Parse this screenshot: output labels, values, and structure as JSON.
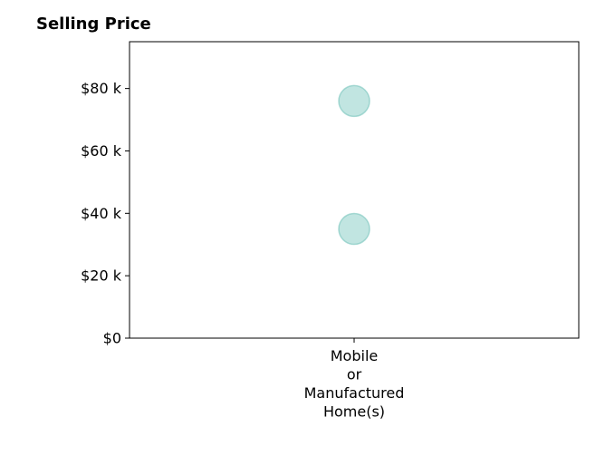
{
  "chart_data": {
    "type": "scatter",
    "title": "Selling Price",
    "xlabel": "",
    "ylabel": "",
    "categories": [
      "Mobile\nor\nManufactured\nHome(s)"
    ],
    "points": [
      {
        "category": 0,
        "value": 76000
      },
      {
        "category": 0,
        "value": 35000
      }
    ],
    "ylim": [
      0,
      95000
    ],
    "yticks": [
      0,
      20000,
      40000,
      60000,
      80000
    ],
    "ytick_labels": [
      "$0",
      "$20 k",
      "$40 k",
      "$60 k",
      "$80 k"
    ],
    "grid": false,
    "legend": "none",
    "marker_color": "#8ecfc8",
    "marker_edge_color": "#6cbfb6",
    "marker_opacity": 0.55
  }
}
